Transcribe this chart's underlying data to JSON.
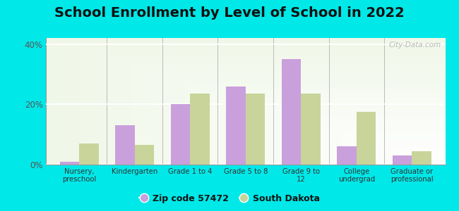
{
  "title": "School Enrollment by Level of School in 2022",
  "categories": [
    "Nursery,\npreschool",
    "Kindergarten",
    "Grade 1 to 4",
    "Grade 5 to 8",
    "Grade 9 to\n12",
    "College\nundergrad",
    "Graduate or\nprofessional"
  ],
  "zip_values": [
    1.0,
    13.0,
    20.0,
    26.0,
    35.0,
    6.0,
    3.0
  ],
  "state_values": [
    7.0,
    6.5,
    23.5,
    23.5,
    23.5,
    17.5,
    4.5
  ],
  "zip_color": "#c9a0dc",
  "state_color": "#c8d49a",
  "background_color": "#00e8e8",
  "ylim": [
    0,
    42
  ],
  "yticks": [
    0,
    20,
    40
  ],
  "ytick_labels": [
    "0%",
    "20%",
    "40%"
  ],
  "legend_zip_label": "Zip code 57472",
  "legend_state_label": "South Dakota",
  "watermark": "City-Data.com",
  "title_fontsize": 14,
  "bar_width": 0.35
}
